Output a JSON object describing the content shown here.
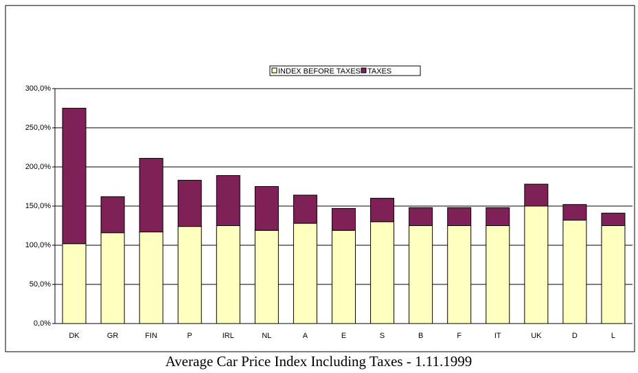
{
  "chart_data": {
    "type": "stacked_bar",
    "title": "Average Car Price Index Including Taxes - 1.11.1999",
    "categories": [
      "DK",
      "GR",
      "FIN",
      "P",
      "IRL",
      "NL",
      "A",
      "E",
      "S",
      "B",
      "F",
      "IT",
      "UK",
      "D",
      "L"
    ],
    "series": [
      {
        "name": "INDEX BEFORE TAXES",
        "color": "#ffffc0",
        "values": [
          102,
          116,
          117,
          124,
          125,
          119,
          128,
          119,
          130,
          125,
          125,
          125,
          150,
          132,
          125
        ]
      },
      {
        "name": "TAXES",
        "color": "#7f2057",
        "values": [
          173,
          46,
          94,
          59,
          64,
          56,
          36,
          28,
          30,
          23,
          23,
          23,
          28,
          20,
          16
        ]
      }
    ],
    "ylim": [
      0,
      300
    ],
    "yticks": [
      {
        "value": 0,
        "label": "0,0%"
      },
      {
        "value": 50,
        "label": "50,0%"
      },
      {
        "value": 100,
        "label": "100,0%"
      },
      {
        "value": 150,
        "label": "150,0%"
      },
      {
        "value": 200,
        "label": "200,0%"
      },
      {
        "value": 250,
        "label": "250,0%"
      },
      {
        "value": 300,
        "label": "300,0%"
      }
    ],
    "grid": true,
    "legend": "top"
  }
}
